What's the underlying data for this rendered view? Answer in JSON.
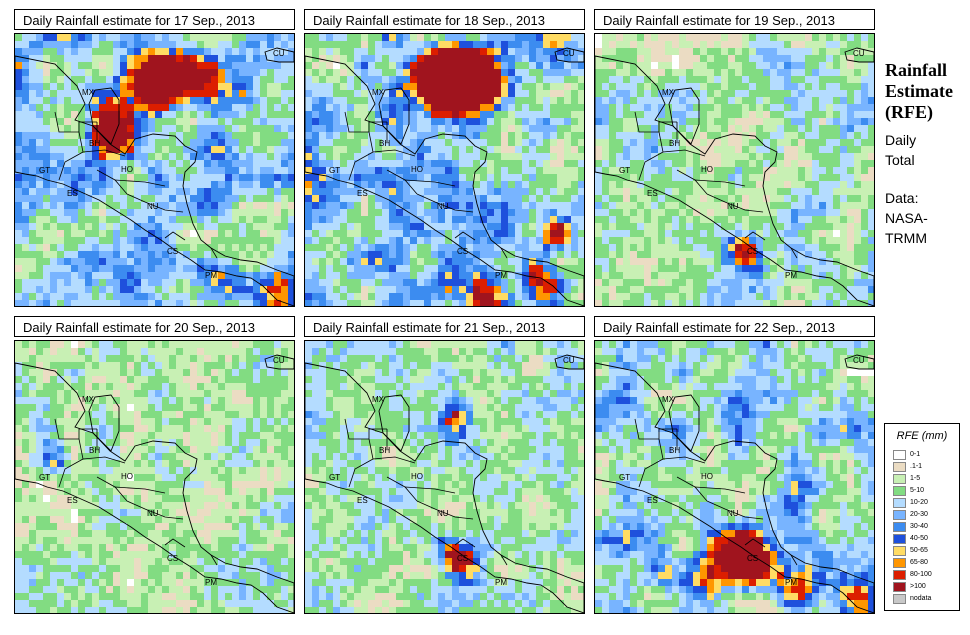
{
  "panels": [
    {
      "title": "Daily Rainfall estimate for  17 Sep., 2013",
      "seed": 17,
      "intensity": 1.0,
      "hotspots": [
        [
          "mx_north",
          4
        ],
        [
          "bh",
          3
        ],
        [
          "pm_east",
          3
        ]
      ]
    },
    {
      "title": "Daily Rainfall estimate for  18 Sep., 2013",
      "seed": 18,
      "intensity": 1.1,
      "hotspots": [
        [
          "mx_north",
          5
        ],
        [
          "pac_south",
          3
        ],
        [
          "caribbean_se",
          2
        ]
      ]
    },
    {
      "title": "Daily Rainfall estimate for  19 Sep., 2013",
      "seed": 19,
      "intensity": 0.7,
      "hotspots": [
        [
          "cs",
          2
        ]
      ]
    },
    {
      "title": "Daily Rainfall estimate for  20 Sep., 2013",
      "seed": 20,
      "intensity": 0.6,
      "hotspots": [
        [
          "gt",
          2
        ]
      ]
    },
    {
      "title": "Daily Rainfall estimate for  21 Sep., 2013",
      "seed": 21,
      "intensity": 0.65,
      "hotspots": [
        [
          "gulf_hon",
          2
        ],
        [
          "cs",
          2
        ]
      ]
    },
    {
      "title": "Daily Rainfall estimate for  22 Sep., 2013",
      "seed": 22,
      "intensity": 0.9,
      "hotspots": [
        [
          "cs",
          4
        ],
        [
          "pac_west",
          3
        ],
        [
          "pm_east",
          3
        ]
      ]
    }
  ],
  "country_labels": [
    "MX",
    "BH",
    "GT",
    "HO",
    "ES",
    "NU",
    "CS",
    "PM",
    "CU"
  ],
  "side": {
    "title_line1": "Rainfall",
    "title_line2": "Estimate",
    "title_line3": "(RFE)",
    "daily": "Daily",
    "total": "Total",
    "data_label": "Data:",
    "source1": "NASA-",
    "source2": "TRMM"
  },
  "legend": {
    "title": "RFE (mm)",
    "items": [
      {
        "label": "0-1",
        "color": "#ffffff"
      },
      {
        "label": ".1-1",
        "color": "#ebdcc3"
      },
      {
        "label": "1-5",
        "color": "#c8f0b4"
      },
      {
        "label": "5-10",
        "color": "#82dc82"
      },
      {
        "label": "10-20",
        "color": "#b4dcff"
      },
      {
        "label": "20-30",
        "color": "#78b4ff"
      },
      {
        "label": "30-40",
        "color": "#3c8cf0"
      },
      {
        "label": "40-50",
        "color": "#1e50dc"
      },
      {
        "label": "50-65",
        "color": "#ffdc64"
      },
      {
        "label": "65-80",
        "color": "#ff9600"
      },
      {
        "label": "80-100",
        "color": "#dc1e00"
      },
      {
        "label": ">100",
        "color": "#a0141e"
      },
      {
        "label": "nodata",
        "color": "#c8c8c8"
      }
    ]
  }
}
